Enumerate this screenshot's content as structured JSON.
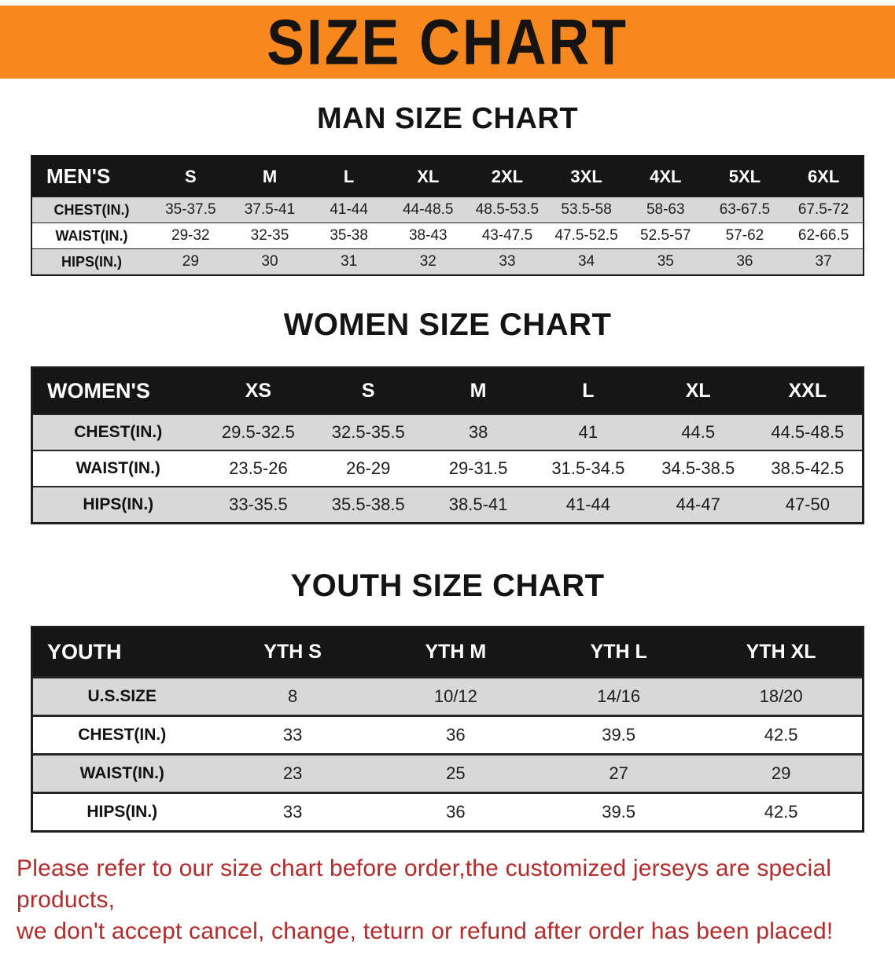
{
  "banner": {
    "title": "SIZE CHART"
  },
  "colors": {
    "banner_bg": "#f6881f",
    "header_bg": "#161616",
    "stripe_gray": "#d8d8d8",
    "disclaimer_red": "#b32b2b",
    "title_black": "#161310"
  },
  "sections": [
    {
      "heading": "MAN SIZE CHART",
      "table": {
        "header": [
          "MEN'S",
          "S",
          "M",
          "L",
          "XL",
          "2XL",
          "3XL",
          "4XL",
          "5XL",
          "6XL"
        ],
        "rows": [
          [
            "CHEST(IN.)",
            "35-37.5",
            "37.5-41",
            "41-44",
            "44-48.5",
            "48.5-53.5",
            "53.5-58",
            "58-63",
            "63-67.5",
            "67.5-72"
          ],
          [
            "WAIST(IN.)",
            "29-32",
            "32-35",
            "35-38",
            "38-43",
            "43-47.5",
            "47.5-52.5",
            "52.5-57",
            "57-62",
            "62-66.5"
          ],
          [
            "HIPS(IN.)",
            "29",
            "30",
            "31",
            "32",
            "33",
            "34",
            "35",
            "36",
            "37"
          ]
        ]
      }
    },
    {
      "heading": "WOMEN SIZE CHART",
      "table": {
        "header": [
          "WOMEN'S",
          "XS",
          "S",
          "M",
          "L",
          "XL",
          "XXL"
        ],
        "rows": [
          [
            "CHEST(IN.)",
            "29.5-32.5",
            "32.5-35.5",
            "38",
            "41",
            "44.5",
            "44.5-48.5"
          ],
          [
            "WAIST(IN.)",
            "23.5-26",
            "26-29",
            "29-31.5",
            "31.5-34.5",
            "34.5-38.5",
            "38.5-42.5"
          ],
          [
            "HIPS(IN.)",
            "33-35.5",
            "35.5-38.5",
            "38.5-41",
            "41-44",
            "44-47",
            "47-50"
          ]
        ]
      }
    },
    {
      "heading": "YOUTH SIZE CHART",
      "table": {
        "header": [
          "YOUTH",
          "YTH S",
          "YTH M",
          "YTH L",
          "YTH XL"
        ],
        "rows": [
          [
            "U.S.SIZE",
            "8",
            "10/12",
            "14/16",
            "18/20"
          ],
          [
            "CHEST(IN.)",
            "33",
            "36",
            "39.5",
            "42.5"
          ],
          [
            "WAIST(IN.)",
            "23",
            "25",
            "27",
            "29"
          ],
          [
            "HIPS(IN.)",
            "33",
            "36",
            "39.5",
            "42.5"
          ]
        ]
      }
    }
  ],
  "disclaimer": {
    "line1": "Please refer to our size chart before order,the customized jerseys are special products,",
    "line2": "we don't accept cancel, change, teturn or refund after order has been placed!"
  }
}
